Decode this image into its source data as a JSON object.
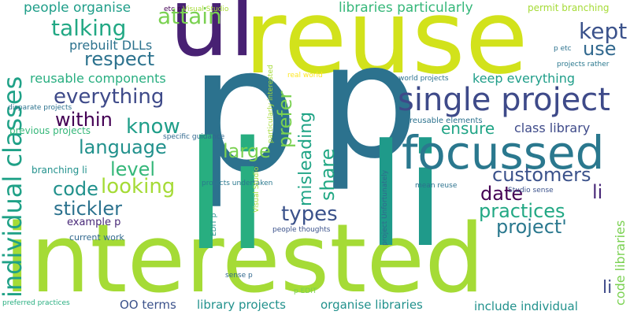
{
  "words": [
    {
      "text": "interested",
      "color": "#a5db36"
    },
    {
      "text": "reuse",
      "color": "#d2e21b"
    },
    {
      "text": "ul",
      "color": "#482173"
    },
    {
      "text": "p",
      "color": "#2c728e"
    },
    {
      "text": "p",
      "color": "#2c728e"
    },
    {
      "text": "li",
      "color": "#28ae80"
    },
    {
      "text": "li",
      "color": "#1f9a8a"
    },
    {
      "text": "focussed",
      "color": "#2a788e"
    },
    {
      "text": "single project",
      "color": "#3e4a89"
    },
    {
      "text": "individual classes",
      "color": "#1fa187"
    },
    {
      "text": "attain",
      "color": "#7ad151"
    },
    {
      "text": "talking",
      "color": "#22a884"
    },
    {
      "text": "respect",
      "color": "#2c728e"
    },
    {
      "text": "kept",
      "color": "#3b528b"
    },
    {
      "text": "use",
      "color": "#31688e"
    },
    {
      "text": "everything",
      "color": "#3e4a89"
    },
    {
      "text": "within",
      "color": "#440154"
    },
    {
      "text": "know",
      "color": "#1f9e89"
    },
    {
      "text": "language",
      "color": "#21918c"
    },
    {
      "text": "level",
      "color": "#35b779"
    },
    {
      "text": "large",
      "color": "#7ad151"
    },
    {
      "text": "code",
      "color": "#21918c"
    },
    {
      "text": "looking",
      "color": "#a5db36"
    },
    {
      "text": "stickler",
      "color": "#2c728e"
    },
    {
      "text": "types",
      "color": "#3b528b"
    },
    {
      "text": "date",
      "color": "#440154"
    },
    {
      "text": "customers",
      "color": "#3b528b"
    },
    {
      "text": "li",
      "color": "#482878"
    },
    {
      "text": "practices",
      "color": "#22a884"
    },
    {
      "text": "project'",
      "color": "#2a788e"
    },
    {
      "text": "ensure",
      "color": "#20a486"
    },
    {
      "text": "class library",
      "color": "#3e4a89"
    },
    {
      "text": "prefer",
      "color": "#7ad151"
    },
    {
      "text": "misleading",
      "color": "#20a486"
    },
    {
      "text": "share",
      "color": "#22a884"
    },
    {
      "text": "people organise",
      "color": "#1f9e89"
    },
    {
      "text": "libraries particularly",
      "color": "#35b779"
    },
    {
      "text": "prebuilt DLLs",
      "color": "#2c728e"
    },
    {
      "text": "reusable components",
      "color": "#28ae80"
    },
    {
      "text": "keep everything",
      "color": "#1f9e89"
    },
    {
      "text": "permit branching",
      "color": "#a5db36"
    },
    {
      "text": "etc p",
      "color": "#440154"
    },
    {
      "text": "Visual Studio",
      "color": "#a5db36"
    },
    {
      "text": "p etc",
      "color": "#2c728e"
    },
    {
      "text": "projects rather",
      "color": "#2a788e"
    },
    {
      "text": "world projects",
      "color": "#2c728e"
    },
    {
      "text": "real world",
      "color": "#fde725"
    },
    {
      "text": "particularly interested",
      "color": "#a5db36"
    },
    {
      "text": "disparate projects",
      "color": "#2c728e"
    },
    {
      "text": "previous projects",
      "color": "#35b779"
    },
    {
      "text": "specific guidance",
      "color": "#31688e"
    },
    {
      "text": "reusable elements",
      "color": "#2c728e"
    },
    {
      "text": "branching li",
      "color": "#21918c"
    },
    {
      "text": "example p",
      "color": "#482878"
    },
    {
      "text": "current work",
      "color": "#31688e"
    },
    {
      "text": "OO terms",
      "color": "#3b528b"
    },
    {
      "text": "preferred practices",
      "color": "#28ae80"
    },
    {
      "text": "projects undertaken",
      "color": "#2a788e"
    },
    {
      "text": "EDIT p",
      "color": "#21918c"
    },
    {
      "text": "Visual Studio",
      "color": "#a5db36"
    },
    {
      "text": "people thoughts",
      "color": "#3b528b"
    },
    {
      "text": "sense p",
      "color": "#31688e"
    },
    {
      "text": "p EDIT",
      "color": "#7ad151"
    },
    {
      "text": "project Unfortunately",
      "color": "#31688e"
    },
    {
      "text": "mean reuse",
      "color": "#2c728e"
    },
    {
      "text": "Studio sense",
      "color": "#3b528b"
    },
    {
      "text": "code libraries",
      "color": "#7ad151"
    },
    {
      "text": "library projects",
      "color": "#21918c"
    },
    {
      "text": "organise libraries",
      "color": "#21918c"
    },
    {
      "text": "include individual",
      "color": "#21918c"
    },
    {
      "text": "li",
      "color": "#3e4a89"
    }
  ]
}
